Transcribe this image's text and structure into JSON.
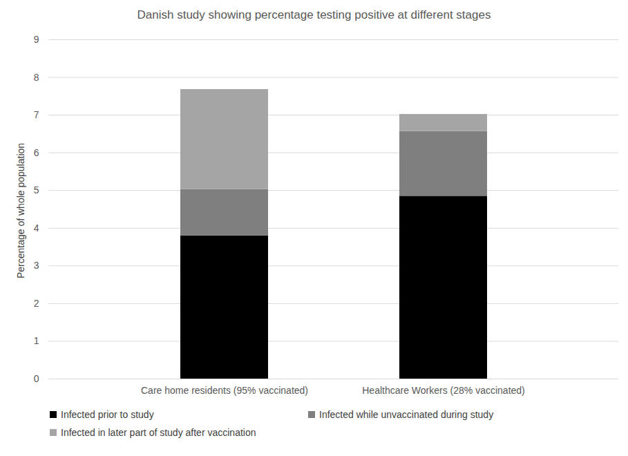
{
  "chart_data": {
    "type": "bar",
    "title": "Danish study showing percentage testing positive at different stages",
    "ylabel": "Percentage of whole population",
    "categories": [
      "Care home residents (95% vaccinated)",
      "Healthcare Workers (28% vaccinated)"
    ],
    "series": [
      {
        "name": "Infected prior to study",
        "color": "#000000",
        "values": [
          3.8,
          4.85
        ]
      },
      {
        "name": "Infected while unvaccinated during study",
        "color": "#7f7f7f",
        "values": [
          1.23,
          1.72
        ]
      },
      {
        "name": "Infected in later part of study after vaccination",
        "color": "#a5a5a5",
        "values": [
          2.65,
          0.45
        ]
      }
    ],
    "ylim": [
      0,
      9
    ],
    "yticks": [
      0,
      1,
      2,
      3,
      4,
      5,
      6,
      7,
      8,
      9
    ],
    "grid": true,
    "stacked": true,
    "legend": "bottom"
  }
}
